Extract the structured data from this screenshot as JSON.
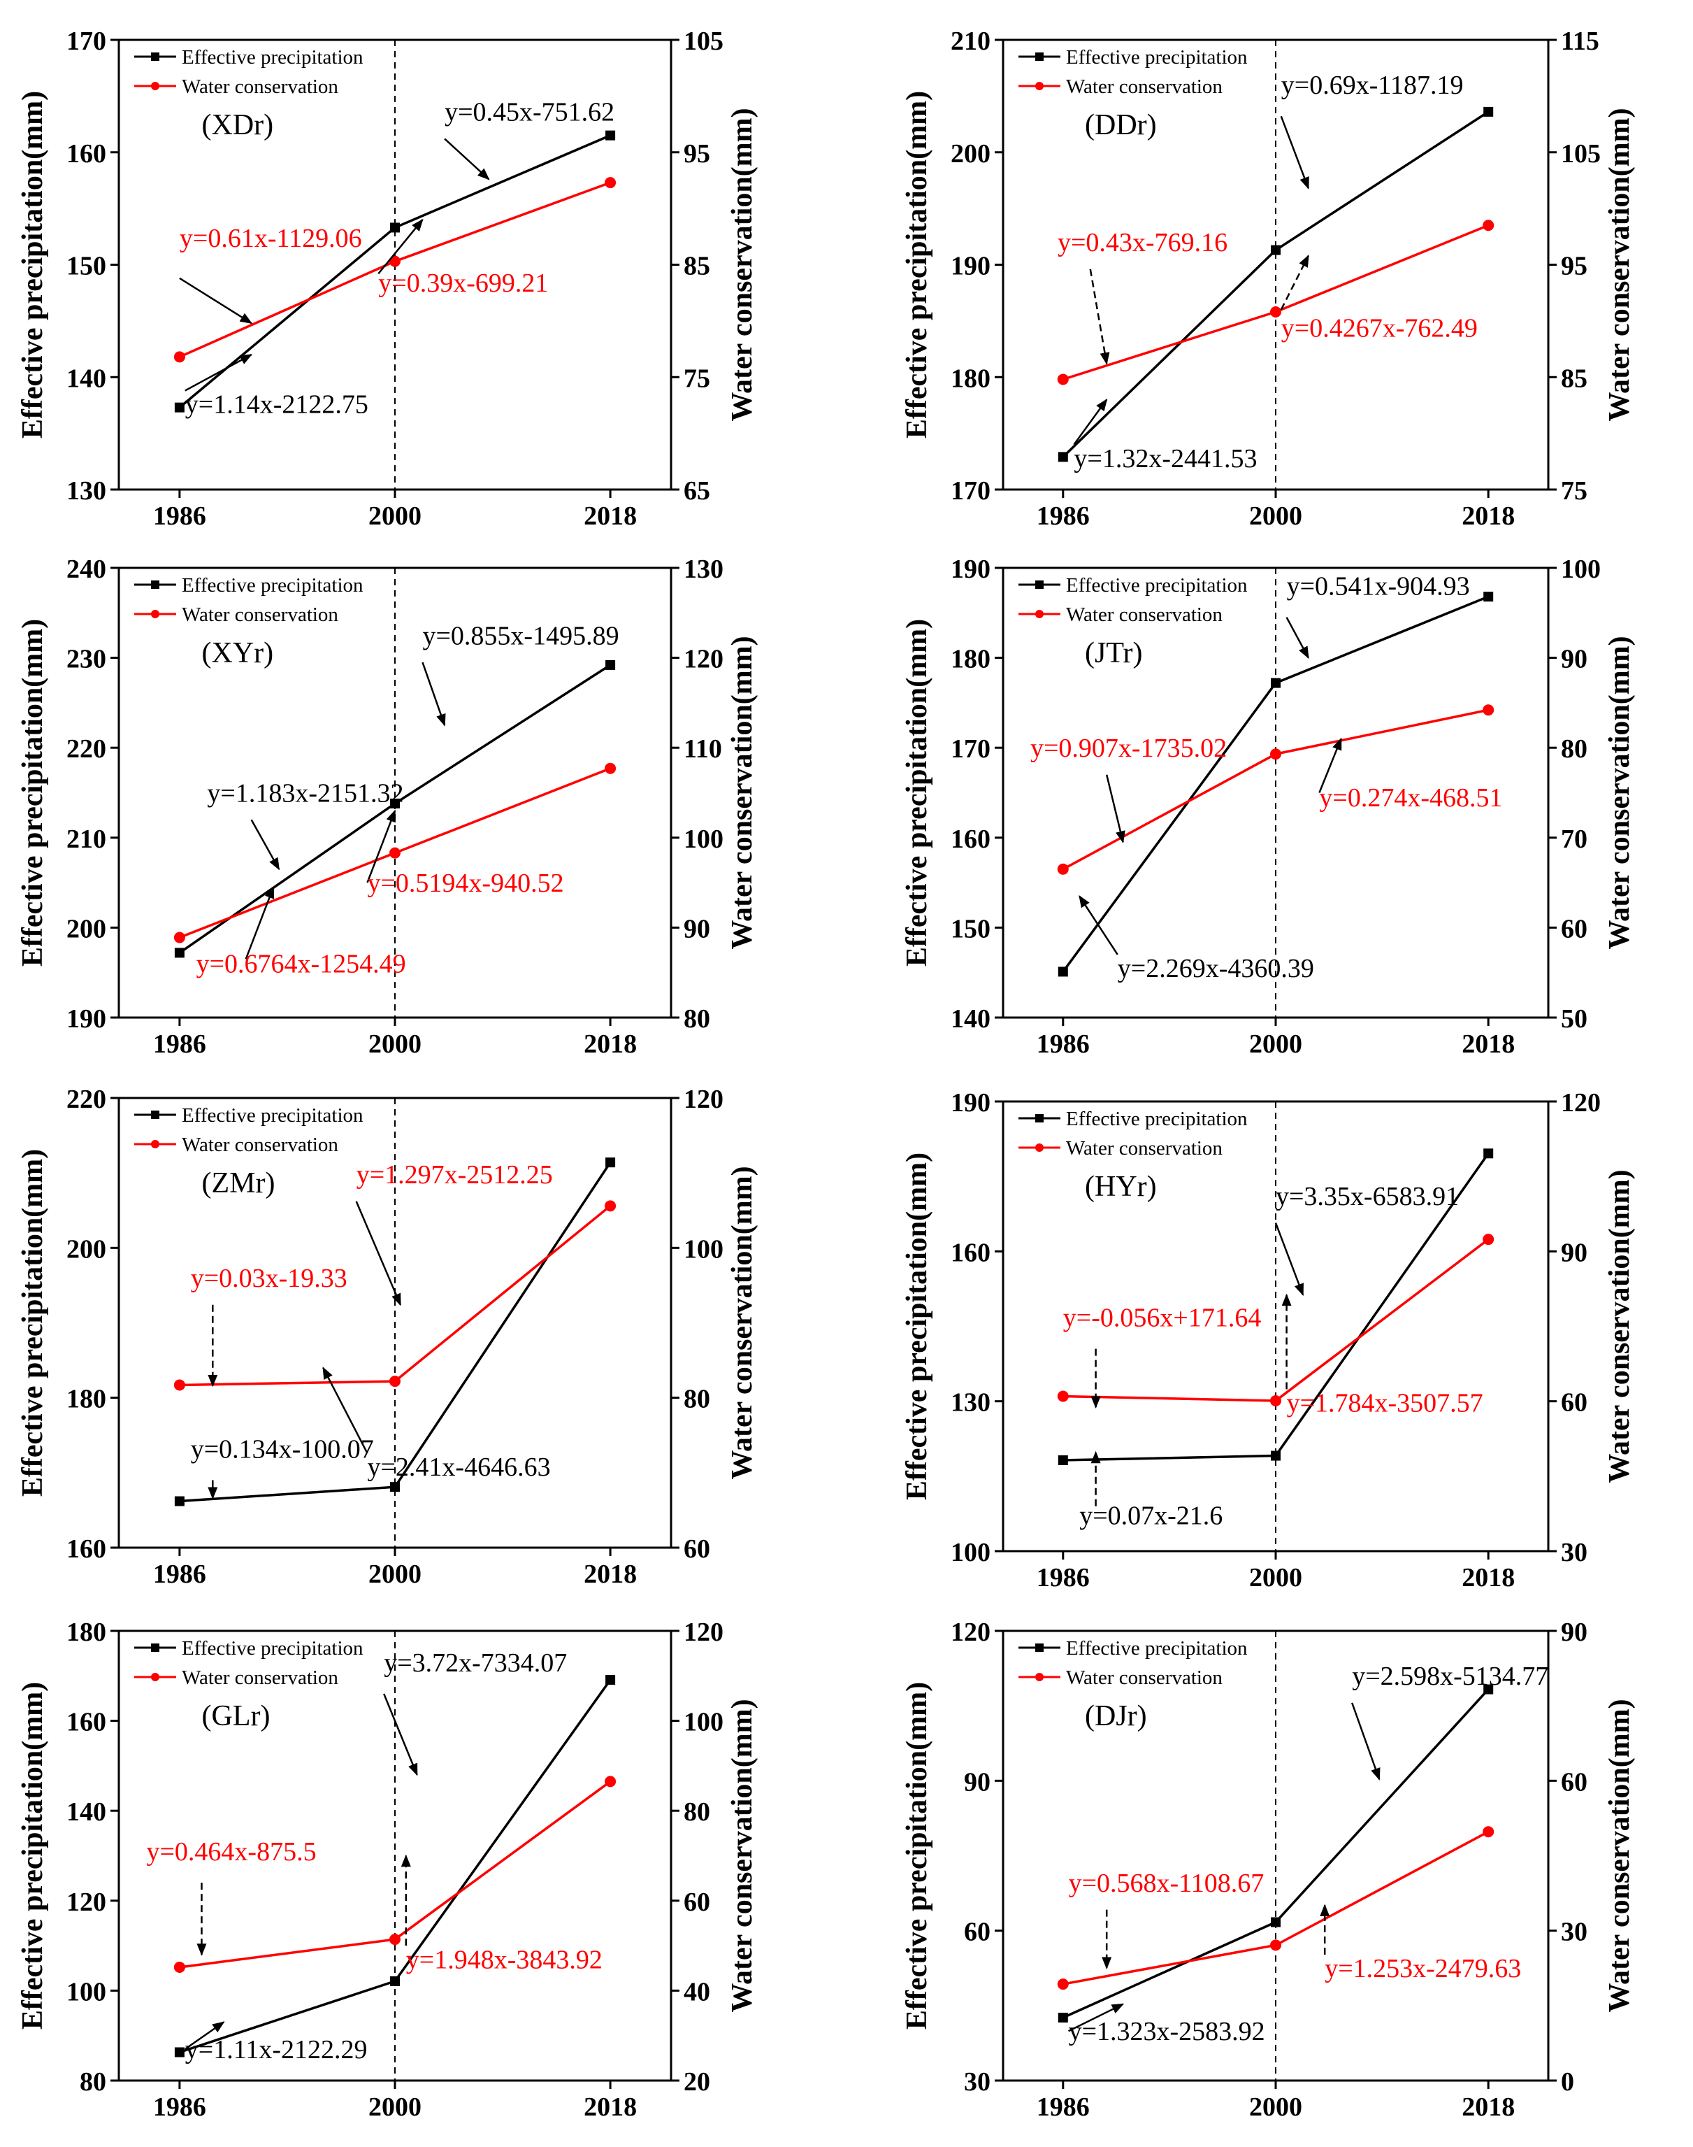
{
  "chart_data": [
    {
      "type": "line",
      "panel_label": "(XDr)",
      "ylabel_left": "Effective precipitation(mm)",
      "ylabel_right": "Water conservation(mm)",
      "categories": [
        "1986",
        "2000",
        "2018"
      ],
      "ylim_left": [
        130,
        170
      ],
      "yticks_left": [
        130,
        140,
        150,
        160,
        170
      ],
      "ylim_right": [
        65,
        105
      ],
      "yticks_right": [
        65,
        75,
        85,
        95,
        105
      ],
      "series": [
        {
          "name": "Effective precipitation",
          "axis": "left",
          "color": "#000000",
          "marker": "square",
          "values": [
            137.3,
            153.3,
            161.5
          ]
        },
        {
          "name": "Water conservation",
          "axis": "right",
          "color": "#ff0000",
          "marker": "circle",
          "values": [
            76.8,
            85.3,
            92.3
          ]
        }
      ],
      "annotations": [
        {
          "text": "y=0.61x-1129.06",
          "color": "red"
        },
        {
          "text": "y=0.39x-699.21",
          "color": "red"
        },
        {
          "text": "y=1.14x-2122.75",
          "color": "black"
        },
        {
          "text": "y=0.45x-751.62",
          "color": "black"
        }
      ]
    },
    {
      "type": "line",
      "panel_label": "(DDr)",
      "ylabel_left": "Effective precipitation(mm)",
      "ylabel_right": "Water conservation(mm)",
      "categories": [
        "1986",
        "2000",
        "2018"
      ],
      "ylim_left": [
        170,
        210
      ],
      "yticks_left": [
        170,
        180,
        190,
        200,
        210
      ],
      "ylim_right": [
        75,
        115
      ],
      "yticks_right": [
        75,
        85,
        95,
        105,
        115
      ],
      "series": [
        {
          "name": "Effective precipitation",
          "axis": "left",
          "color": "#000000",
          "marker": "square",
          "values": [
            172.9,
            191.3,
            203.6
          ]
        },
        {
          "name": "Water conservation",
          "axis": "right",
          "color": "#ff0000",
          "marker": "circle",
          "values": [
            84.8,
            90.8,
            98.5
          ]
        }
      ],
      "annotations": [
        {
          "text": "y=0.43x-769.16",
          "color": "red"
        },
        {
          "text": "y=0.4267x-762.49",
          "color": "red"
        },
        {
          "text": "y=1.32x-2441.53",
          "color": "black"
        },
        {
          "text": "y=0.69x-1187.19",
          "color": "black"
        }
      ]
    },
    {
      "type": "line",
      "panel_label": "(XYr)",
      "ylabel_left": "Effective precipitation(mm)",
      "ylabel_right": "Water conservation(mm)",
      "categories": [
        "1986",
        "2000",
        "2018"
      ],
      "ylim_left": [
        190,
        240
      ],
      "yticks_left": [
        190,
        200,
        210,
        220,
        230,
        240
      ],
      "ylim_right": [
        80,
        130
      ],
      "yticks_right": [
        80,
        90,
        100,
        110,
        120,
        130
      ],
      "series": [
        {
          "name": "Effective precipitation",
          "axis": "left",
          "color": "#000000",
          "marker": "square",
          "values": [
            197.2,
            213.8,
            229.2
          ]
        },
        {
          "name": "Water conservation",
          "axis": "right",
          "color": "#ff0000",
          "marker": "circle",
          "values": [
            88.9,
            98.3,
            107.7
          ]
        }
      ],
      "annotations": [
        {
          "text": "y=1.183x-2151.32",
          "color": "black"
        },
        {
          "text": "y=0.855x-1495.89",
          "color": "black"
        },
        {
          "text": "y=0.5194x-940.52",
          "color": "red"
        },
        {
          "text": "y=0.6764x-1254.49",
          "color": "red"
        }
      ]
    },
    {
      "type": "line",
      "panel_label": "(JTr)",
      "ylabel_left": "Effective precipitation(mm)",
      "ylabel_right": "Water conservation(mm)",
      "categories": [
        "1986",
        "2000",
        "2018"
      ],
      "ylim_left": [
        140,
        190
      ],
      "yticks_left": [
        140,
        150,
        160,
        170,
        180,
        190
      ],
      "ylim_right": [
        50,
        100
      ],
      "yticks_right": [
        50,
        60,
        70,
        80,
        90,
        100
      ],
      "series": [
        {
          "name": "Effective precipitation",
          "axis": "left",
          "color": "#000000",
          "marker": "square",
          "values": [
            145.1,
            177.2,
            186.8
          ]
        },
        {
          "name": "Water conservation",
          "axis": "right",
          "color": "#ff0000",
          "marker": "circle",
          "values": [
            66.5,
            79.3,
            84.2
          ]
        }
      ],
      "annotations": [
        {
          "text": "y=0.907x-1735.02",
          "color": "red"
        },
        {
          "text": "y=0.274x-468.51",
          "color": "red"
        },
        {
          "text": "y=2.269x-4360.39",
          "color": "black"
        },
        {
          "text": "y=0.541x-904.93",
          "color": "black"
        }
      ]
    },
    {
      "type": "line",
      "panel_label": "(ZMr)",
      "ylabel_left": "Effective precipitation(mm)",
      "ylabel_right": "Water conservation(mm)",
      "categories": [
        "1986",
        "2000",
        "2018"
      ],
      "ylim_left": [
        160,
        220
      ],
      "yticks_left": [
        160,
        180,
        200,
        220
      ],
      "ylim_right": [
        60,
        120
      ],
      "yticks_right": [
        60,
        80,
        100,
        120
      ],
      "series": [
        {
          "name": "Effective precipitation",
          "axis": "left",
          "color": "#000000",
          "marker": "square",
          "values": [
            166.2,
            168.1,
            211.4
          ]
        },
        {
          "name": "Water conservation",
          "axis": "right",
          "color": "#ff0000",
          "marker": "circle",
          "values": [
            81.7,
            82.2,
            105.6
          ]
        }
      ],
      "annotations": [
        {
          "text": "y=0.03x-19.33",
          "color": "red"
        },
        {
          "text": "y=1.297x-2512.25",
          "color": "red"
        },
        {
          "text": "y=0.134x-100.07",
          "color": "black"
        },
        {
          "text": "y=2.41x-4646.63",
          "color": "black"
        }
      ]
    },
    {
      "type": "line",
      "panel_label": "(HYr)",
      "ylabel_left": "Effective precipitation(mm)",
      "ylabel_right": "Water conservation(mm)",
      "categories": [
        "1986",
        "2000",
        "2018"
      ],
      "ylim_left": [
        100,
        190
      ],
      "yticks_left": [
        100,
        130,
        160,
        190
      ],
      "ylim_right": [
        30,
        120
      ],
      "yticks_right": [
        30,
        60,
        90,
        120
      ],
      "series": [
        {
          "name": "Effective precipitation",
          "axis": "left",
          "color": "#000000",
          "marker": "square",
          "values": [
            118.2,
            119.1,
            179.6
          ]
        },
        {
          "name": "Water conservation",
          "axis": "right",
          "color": "#ff0000",
          "marker": "circle",
          "values": [
            61.0,
            60.1,
            92.4
          ]
        }
      ],
      "annotations": [
        {
          "text": "y=-0.056x+171.64",
          "color": "red"
        },
        {
          "text": "y=1.784x-3507.57",
          "color": "red"
        },
        {
          "text": "y=3.35x-6583.91",
          "color": "black"
        },
        {
          "text": "y=0.07x-21.6",
          "color": "black"
        }
      ]
    },
    {
      "type": "line",
      "panel_label": "(GLr)",
      "ylabel_left": "Effective precipitation(mm)",
      "ylabel_right": "Water conservation(mm)",
      "categories": [
        "1986",
        "2000",
        "2018"
      ],
      "ylim_left": [
        80,
        180
      ],
      "yticks_left": [
        80,
        100,
        120,
        140,
        160,
        180
      ],
      "ylim_right": [
        20,
        120
      ],
      "yticks_right": [
        20,
        40,
        60,
        80,
        100,
        120
      ],
      "series": [
        {
          "name": "Effective precipitation",
          "axis": "left",
          "color": "#000000",
          "marker": "square",
          "values": [
            86.3,
            102.1,
            169.1
          ]
        },
        {
          "name": "Water conservation",
          "axis": "right",
          "color": "#ff0000",
          "marker": "circle",
          "values": [
            45.2,
            51.4,
            86.5
          ]
        }
      ],
      "annotations": [
        {
          "text": "y=0.464x-875.5",
          "color": "red"
        },
        {
          "text": "y=1.948x-3843.92",
          "color": "red"
        },
        {
          "text": "y=3.72x-7334.07",
          "color": "black"
        },
        {
          "text": "y=1.11x-2122.29",
          "color": "black"
        }
      ]
    },
    {
      "type": "line",
      "panel_label": "(DJr)",
      "ylabel_left": "Effective precipitation(mm)",
      "ylabel_right": "Water conservation(mm)",
      "categories": [
        "1986",
        "2000",
        "2018"
      ],
      "ylim_left": [
        30,
        120
      ],
      "yticks_left": [
        30,
        60,
        90,
        120
      ],
      "ylim_right": [
        0,
        90
      ],
      "yticks_right": [
        0,
        30,
        60,
        90
      ],
      "series": [
        {
          "name": "Effective precipitation",
          "axis": "left",
          "color": "#000000",
          "marker": "square",
          "values": [
            42.6,
            61.7,
            108.3
          ]
        },
        {
          "name": "Water conservation",
          "axis": "right",
          "color": "#ff0000",
          "marker": "circle",
          "values": [
            19.3,
            27.1,
            49.8
          ]
        }
      ],
      "annotations": [
        {
          "text": "y=0.568x-1108.67",
          "color": "red"
        },
        {
          "text": "y=1.253x-2479.63",
          "color": "red"
        },
        {
          "text": "y=2.598x-5134.77",
          "color": "black"
        },
        {
          "text": "y=1.323x-2583.92",
          "color": "black"
        }
      ]
    }
  ]
}
